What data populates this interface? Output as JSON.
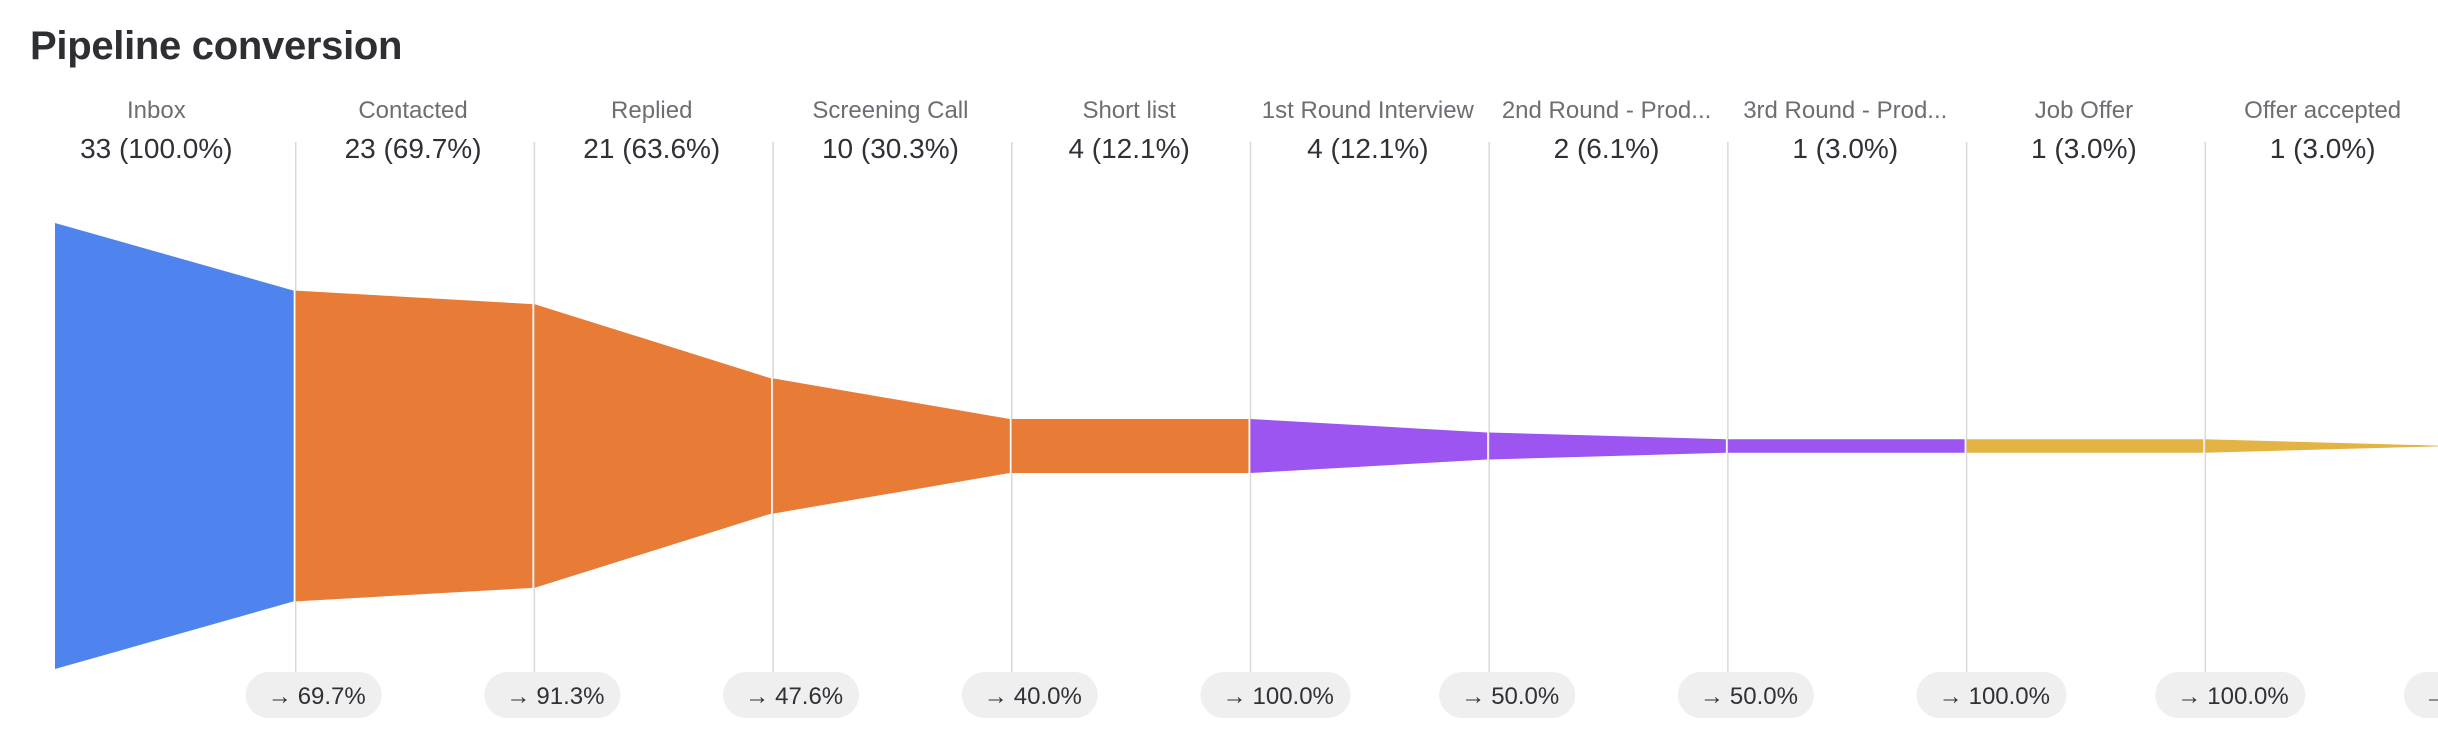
{
  "header": {
    "title": "Pipeline conversion"
  },
  "chart_data": {
    "type": "funnel",
    "title": "Pipeline conversion",
    "stages": [
      {
        "label": "Inbox",
        "count": 33,
        "percent_label": "33 (100.0%)",
        "color": "#4f83ee"
      },
      {
        "label": "Contacted",
        "count": 23,
        "percent_label": "23 (69.7%)",
        "color": "#e87b35"
      },
      {
        "label": "Replied",
        "count": 21,
        "percent_label": "21 (63.6%)",
        "color": "#e87b35"
      },
      {
        "label": "Screening Call",
        "count": 10,
        "percent_label": "10 (30.3%)",
        "color": "#e87b35"
      },
      {
        "label": "Short list",
        "count": 4,
        "percent_label": "4 (12.1%)",
        "color": "#e87b35"
      },
      {
        "label": "1st Round Interview",
        "count": 4,
        "percent_label": "4 (12.1%)",
        "color": "#9c55f0"
      },
      {
        "label": "2nd Round - Prod...",
        "count": 2,
        "percent_label": "2 (6.1%)",
        "color": "#9c55f0"
      },
      {
        "label": "3rd Round - Prod...",
        "count": 1,
        "percent_label": "1 (3.0%)",
        "color": "#9c55f0"
      },
      {
        "label": "Job Offer",
        "count": 1,
        "percent_label": "1 (3.0%)",
        "color": "#e3b443"
      },
      {
        "label": "Offer accepted",
        "count": 1,
        "percent_label": "1 (3.0%)",
        "color": "#e3b443"
      }
    ],
    "step_conversions": [
      "69.7%",
      "91.3%",
      "47.6%",
      "40.0%",
      "100.0%",
      "50.0%",
      "50.0%",
      "100.0%",
      "100.0%"
    ],
    "arrow_glyph": "→",
    "grid_color": "#d9d9d9",
    "pill_color": "#efefef"
  }
}
